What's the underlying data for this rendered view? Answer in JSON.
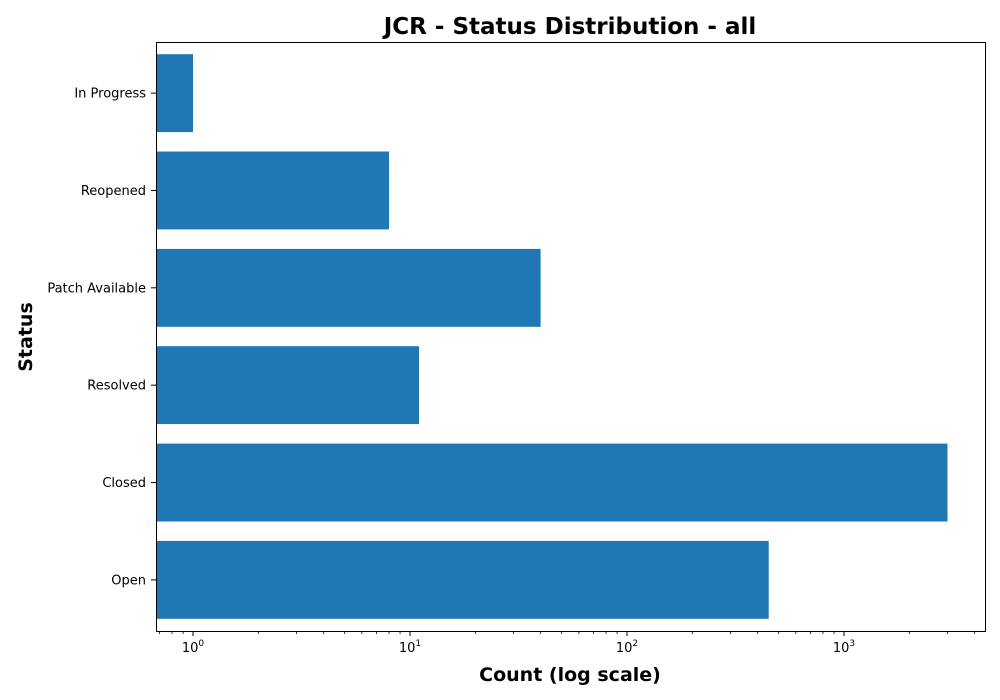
{
  "chart_data": {
    "type": "bar",
    "orientation": "horizontal",
    "title": "JCR - Status Distribution - all",
    "xlabel": "Count (log scale)",
    "ylabel": "Status",
    "x_scale": "log",
    "xlim": [
      0.7,
      4500
    ],
    "x_ticks": [
      {
        "value": 1,
        "base": "10",
        "exp": "0"
      },
      {
        "value": 10,
        "base": "10",
        "exp": "1"
      },
      {
        "value": 100,
        "base": "10",
        "exp": "2"
      },
      {
        "value": 1000,
        "base": "10",
        "exp": "3"
      }
    ],
    "categories": [
      "Open",
      "Closed",
      "Resolved",
      "Patch Available",
      "Reopened",
      "In Progress"
    ],
    "values": [
      450,
      3000,
      11,
      40,
      8,
      1
    ],
    "bar_color": "#1f77b4",
    "grid": false,
    "legend": "none"
  }
}
